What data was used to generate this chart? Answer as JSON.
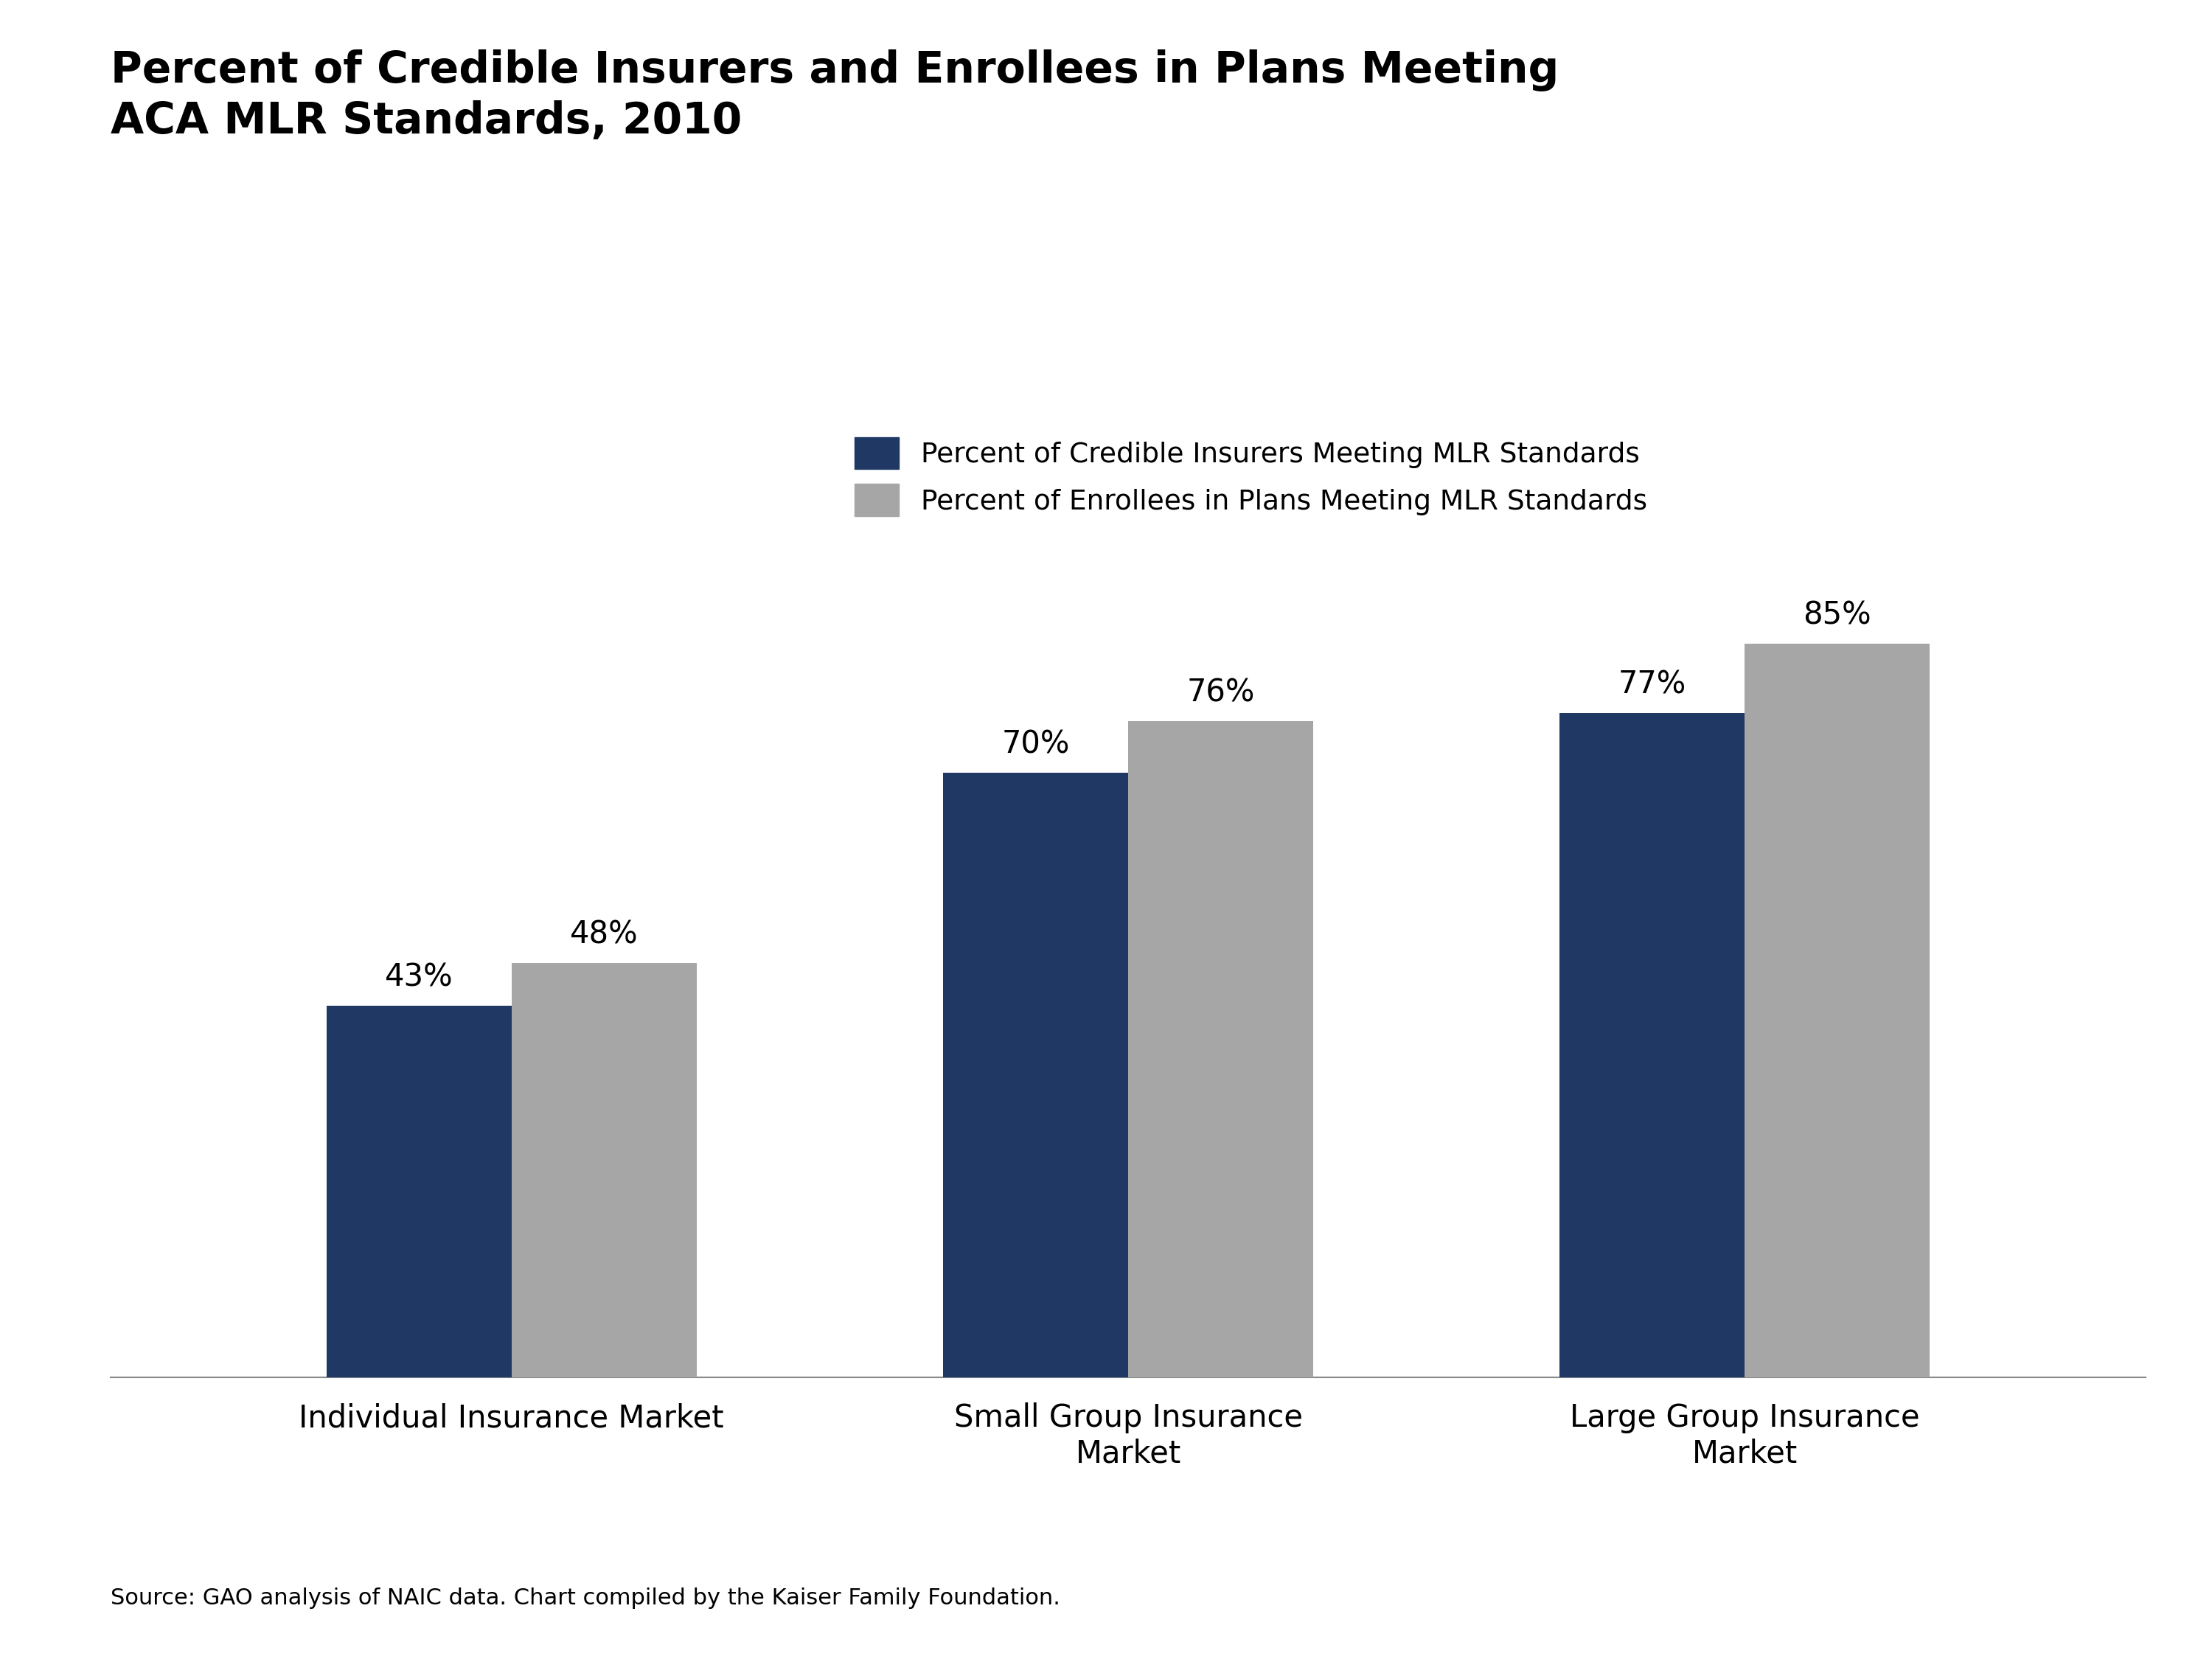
{
  "title_line1": "Percent of Credible Insurers and Enrollees in Plans Meeting",
  "title_line2": "ACA MLR Standards, 2010",
  "categories": [
    "Individual Insurance Market",
    "Small Group Insurance\nMarket",
    "Large Group Insurance\nMarket"
  ],
  "series1_label": "Percent of Credible Insurers Meeting MLR Standards",
  "series2_label": "Percent of Enrollees in Plans Meeting MLR Standards",
  "series1_values": [
    43,
    70,
    77
  ],
  "series2_values": [
    48,
    76,
    85
  ],
  "series1_color": "#1f3864",
  "series2_color": "#a6a6a6",
  "bar_labels1": [
    "43%",
    "70%",
    "77%"
  ],
  "bar_labels2": [
    "48%",
    "76%",
    "85%"
  ],
  "source_text": "Source: GAO analysis of NAIC data. Chart compiled by the Kaiser Family Foundation.",
  "ylim": [
    0,
    100
  ],
  "background_color": "#ffffff",
  "title_fontsize": 42,
  "label_fontsize": 30,
  "legend_fontsize": 27,
  "bar_label_fontsize": 30,
  "source_fontsize": 22
}
